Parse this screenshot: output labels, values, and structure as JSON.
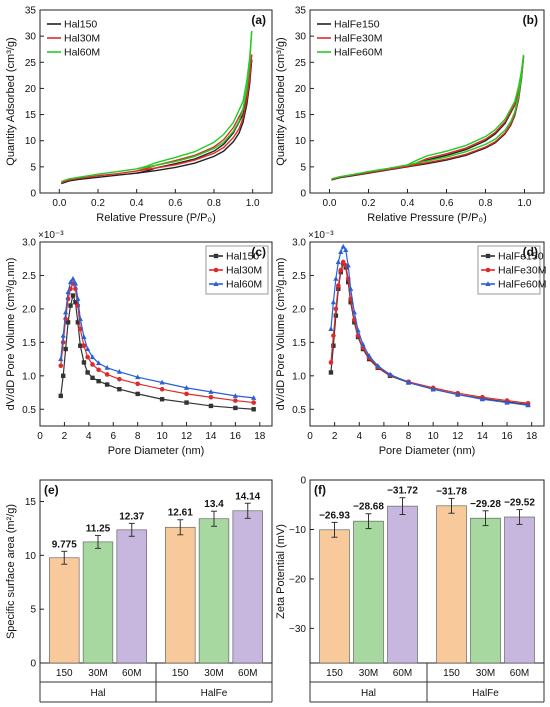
{
  "figure": {
    "background": "#ffffff"
  },
  "chart_data": [
    {
      "id": "a",
      "panel_label": "(a)",
      "type": "line",
      "xlabel": "Relative Pressure (P/P₀)",
      "ylabel": "Quantity Adsorbed (cm³/g)",
      "xlim": [
        -0.1,
        1.1
      ],
      "ylim": [
        0,
        35
      ],
      "xticks": [
        0.0,
        0.2,
        0.4,
        0.6,
        0.8,
        1.0
      ],
      "xticklabels": [
        "0.0",
        "0.2",
        "0.4",
        "0.6",
        "0.8",
        "1.0"
      ],
      "yticks": [
        0,
        5,
        10,
        15,
        20,
        25,
        30,
        35
      ],
      "yticklabels": [
        "0",
        "5",
        "10",
        "15",
        "20",
        "25",
        "30",
        "35"
      ],
      "legend_position": "top-left",
      "grid": false,
      "series": [
        {
          "name": "Hal150",
          "color": "#222222",
          "adsorption": {
            "x": [
              0.01,
              0.05,
              0.1,
              0.2,
              0.3,
              0.4,
              0.5,
              0.6,
              0.7,
              0.8,
              0.85,
              0.9,
              0.93,
              0.95,
              0.97,
              0.985,
              0.995
            ],
            "y": [
              1.8,
              2.3,
              2.6,
              3.0,
              3.4,
              3.8,
              4.3,
              4.9,
              5.7,
              7.0,
              8.0,
              9.8,
              11.5,
              13.5,
              17.0,
              21.0,
              25.5
            ]
          },
          "desorption": {
            "x": [
              0.995,
              0.985,
              0.97,
              0.95,
              0.9,
              0.85,
              0.8,
              0.7,
              0.6,
              0.5,
              0.45,
              0.4
            ],
            "y": [
              25.5,
              22.0,
              18.5,
              15.0,
              11.5,
              9.3,
              8.0,
              6.5,
              5.6,
              4.8,
              4.2,
              3.8
            ]
          }
        },
        {
          "name": "Hal30M",
          "color": "#e02a2a",
          "adsorption": {
            "x": [
              0.01,
              0.05,
              0.1,
              0.2,
              0.3,
              0.4,
              0.5,
              0.6,
              0.7,
              0.8,
              0.85,
              0.9,
              0.93,
              0.95,
              0.97,
              0.985,
              0.995
            ],
            "y": [
              2.0,
              2.5,
              2.8,
              3.3,
              3.7,
              4.2,
              4.8,
              5.4,
              6.3,
              7.6,
              8.7,
              10.6,
              12.3,
              14.3,
              18.0,
              22.0,
              26.5
            ]
          },
          "desorption": {
            "x": [
              0.995,
              0.985,
              0.97,
              0.95,
              0.9,
              0.85,
              0.8,
              0.7,
              0.6,
              0.5,
              0.45,
              0.4
            ],
            "y": [
              26.5,
              23.0,
              19.5,
              16.0,
              12.5,
              10.2,
              8.8,
              7.2,
              6.2,
              5.3,
              4.7,
              4.2
            ]
          }
        },
        {
          "name": "Hal60M",
          "color": "#22cc22",
          "adsorption": {
            "x": [
              0.01,
              0.05,
              0.1,
              0.2,
              0.3,
              0.4,
              0.5,
              0.6,
              0.7,
              0.8,
              0.85,
              0.9,
              0.93,
              0.95,
              0.97,
              0.985,
              0.995
            ],
            "y": [
              2.2,
              2.7,
              3.0,
              3.6,
              4.1,
              4.6,
              5.3,
              6.0,
              7.0,
              8.5,
              9.7,
              11.8,
              13.8,
              16.0,
              20.0,
              25.0,
              31.0
            ]
          },
          "desorption": {
            "x": [
              0.995,
              0.985,
              0.97,
              0.95,
              0.9,
              0.85,
              0.8,
              0.7,
              0.6,
              0.5,
              0.45,
              0.4
            ],
            "y": [
              31.0,
              26.0,
              21.5,
              17.5,
              13.5,
              11.2,
              9.7,
              7.9,
              6.8,
              5.8,
              5.1,
              4.6
            ]
          }
        }
      ]
    },
    {
      "id": "b",
      "panel_label": "(b)",
      "type": "line",
      "xlabel": "Relative Pressure (P/P₀)",
      "ylabel": "Quantity Adsorbed (cm³/g)",
      "xlim": [
        -0.1,
        1.1
      ],
      "ylim": [
        0,
        35
      ],
      "xticks": [
        0.0,
        0.2,
        0.4,
        0.6,
        0.8,
        1.0
      ],
      "xticklabels": [
        "0.0",
        "0.2",
        "0.4",
        "0.6",
        "0.8",
        "1.0"
      ],
      "yticks": [
        0,
        5,
        10,
        15,
        20,
        25,
        30,
        35
      ],
      "yticklabels": [
        "0",
        "5",
        "10",
        "15",
        "20",
        "25",
        "30",
        "35"
      ],
      "legend_position": "top-left",
      "grid": false,
      "series": [
        {
          "name": "HalFe150",
          "color": "#222222",
          "adsorption": {
            "x": [
              0.01,
              0.05,
              0.1,
              0.2,
              0.3,
              0.4,
              0.5,
              0.6,
              0.7,
              0.8,
              0.85,
              0.9,
              0.93,
              0.95,
              0.97,
              0.985,
              0.995
            ],
            "y": [
              2.5,
              2.9,
              3.2,
              3.8,
              4.4,
              5.0,
              5.6,
              6.3,
              7.2,
              8.6,
              9.6,
              11.3,
              13.0,
              14.8,
              18.0,
              22.0,
              26.0
            ]
          },
          "desorption": {
            "x": [
              0.995,
              0.985,
              0.97,
              0.95,
              0.9,
              0.85,
              0.8,
              0.7,
              0.6,
              0.5,
              0.45,
              0.4
            ],
            "y": [
              26.0,
              23.0,
              19.8,
              16.8,
              13.3,
              11.3,
              10.0,
              8.3,
              7.2,
              6.3,
              5.6,
              5.0
            ]
          }
        },
        {
          "name": "HalFe30M",
          "color": "#e02a2a",
          "adsorption": {
            "x": [
              0.01,
              0.05,
              0.1,
              0.2,
              0.3,
              0.4,
              0.5,
              0.6,
              0.7,
              0.8,
              0.85,
              0.9,
              0.93,
              0.95,
              0.97,
              0.985,
              0.995
            ],
            "y": [
              2.6,
              3.0,
              3.3,
              3.9,
              4.5,
              5.1,
              5.8,
              6.5,
              7.4,
              8.8,
              9.8,
              11.5,
              13.2,
              15.0,
              18.3,
              22.3,
              26.2
            ]
          },
          "desorption": {
            "x": [
              0.995,
              0.985,
              0.97,
              0.95,
              0.9,
              0.85,
              0.8,
              0.7,
              0.6,
              0.5,
              0.45,
              0.4
            ],
            "y": [
              26.2,
              23.2,
              20.0,
              17.0,
              13.6,
              11.6,
              10.3,
              8.6,
              7.5,
              6.6,
              5.8,
              5.1
            ]
          }
        },
        {
          "name": "HalFe60M",
          "color": "#22cc22",
          "adsorption": {
            "x": [
              0.01,
              0.05,
              0.1,
              0.2,
              0.3,
              0.4,
              0.5,
              0.6,
              0.7,
              0.8,
              0.85,
              0.9,
              0.93,
              0.95,
              0.97,
              0.985,
              0.995
            ],
            "y": [
              2.7,
              3.1,
              3.4,
              4.1,
              4.7,
              5.4,
              6.1,
              6.9,
              7.9,
              9.3,
              10.3,
              12.0,
              13.7,
              15.5,
              18.7,
              22.6,
              26.4
            ]
          },
          "desorption": {
            "x": [
              0.995,
              0.985,
              0.97,
              0.95,
              0.9,
              0.85,
              0.8,
              0.7,
              0.6,
              0.5,
              0.45,
              0.4
            ],
            "y": [
              26.4,
              23.5,
              20.4,
              17.5,
              14.1,
              12.1,
              10.8,
              9.1,
              8.0,
              7.1,
              6.3,
              5.4
            ]
          }
        }
      ]
    },
    {
      "id": "c",
      "panel_label": "(c)",
      "type": "line",
      "xlabel": "Pore Diameter (nm)",
      "ylabel": "dV/dD Pore Volume (cm³/g.nm)",
      "y_multiplier_label": "×10⁻³",
      "xlim": [
        0,
        19
      ],
      "ylim": [
        0.25,
        3.0
      ],
      "xticks": [
        0,
        2,
        4,
        6,
        8,
        10,
        12,
        14,
        16,
        18
      ],
      "xticklabels": [
        "0",
        "2",
        "4",
        "6",
        "8",
        "10",
        "12",
        "14",
        "16",
        "18"
      ],
      "yticks": [
        0.5,
        1.0,
        1.5,
        2.0,
        2.5,
        3.0
      ],
      "yticklabels": [
        "0.5",
        "1.0",
        "1.5",
        "2.0",
        "2.5",
        "3.0"
      ],
      "legend_position": "top-right",
      "grid": false,
      "series": [
        {
          "name": "Hal150",
          "color": "#333333",
          "marker": "square",
          "x": [
            1.7,
            1.9,
            2.1,
            2.3,
            2.5,
            2.7,
            2.9,
            3.1,
            3.3,
            3.6,
            3.9,
            4.3,
            4.8,
            5.5,
            6.5,
            8.0,
            10.0,
            12.0,
            14.0,
            16.0,
            17.5
          ],
          "y": [
            0.7,
            1.0,
            1.4,
            1.8,
            2.05,
            2.2,
            2.1,
            1.8,
            1.45,
            1.2,
            1.05,
            0.97,
            0.92,
            0.87,
            0.8,
            0.73,
            0.65,
            0.6,
            0.55,
            0.52,
            0.5
          ]
        },
        {
          "name": "Hal30M",
          "color": "#e02a2a",
          "marker": "circle",
          "x": [
            1.7,
            1.9,
            2.1,
            2.3,
            2.5,
            2.7,
            2.9,
            3.1,
            3.3,
            3.6,
            3.9,
            4.3,
            4.8,
            5.5,
            6.5,
            8.0,
            10.0,
            12.0,
            14.0,
            16.0,
            17.5
          ],
          "y": [
            1.15,
            1.5,
            1.85,
            2.15,
            2.3,
            2.38,
            2.3,
            2.05,
            1.7,
            1.45,
            1.28,
            1.17,
            1.09,
            1.02,
            0.95,
            0.88,
            0.8,
            0.73,
            0.68,
            0.63,
            0.6
          ]
        },
        {
          "name": "Hal60M",
          "color": "#2a5fd8",
          "marker": "triangle",
          "x": [
            1.7,
            1.9,
            2.1,
            2.3,
            2.5,
            2.7,
            2.9,
            3.1,
            3.3,
            3.6,
            3.9,
            4.3,
            4.8,
            5.5,
            6.5,
            8.0,
            10.0,
            12.0,
            14.0,
            16.0,
            17.5
          ],
          "y": [
            1.25,
            1.6,
            1.95,
            2.25,
            2.4,
            2.45,
            2.38,
            2.15,
            1.85,
            1.58,
            1.4,
            1.28,
            1.19,
            1.12,
            1.06,
            0.98,
            0.9,
            0.82,
            0.76,
            0.7,
            0.67
          ]
        }
      ]
    },
    {
      "id": "d",
      "panel_label": "(d)",
      "type": "line",
      "xlabel": "Pore Diameter (nm)",
      "ylabel": "dV/dD Pore Volume (cm³/g.nm)",
      "y_multiplier_label": "×10⁻³",
      "xlim": [
        0,
        19
      ],
      "ylim": [
        0.25,
        3.0
      ],
      "xticks": [
        0,
        2,
        4,
        6,
        8,
        10,
        12,
        14,
        16,
        18
      ],
      "xticklabels": [
        "0",
        "2",
        "4",
        "6",
        "8",
        "10",
        "12",
        "14",
        "16",
        "18"
      ],
      "yticks": [
        0.5,
        1.0,
        1.5,
        2.0,
        2.5,
        3.0
      ],
      "yticklabels": [
        "0.5",
        "1.0",
        "1.5",
        "2.0",
        "2.5",
        "3.0"
      ],
      "legend_position": "top-right",
      "grid": false,
      "series": [
        {
          "name": "HalFe150",
          "color": "#333333",
          "marker": "square",
          "x": [
            1.7,
            1.9,
            2.1,
            2.3,
            2.5,
            2.7,
            2.9,
            3.1,
            3.3,
            3.6,
            3.9,
            4.3,
            4.8,
            5.5,
            6.5,
            8.0,
            10.0,
            12.0,
            14.0,
            16.0,
            17.7
          ],
          "y": [
            1.05,
            1.45,
            1.9,
            2.3,
            2.55,
            2.68,
            2.62,
            2.4,
            2.1,
            1.8,
            1.58,
            1.4,
            1.25,
            1.12,
            1.0,
            0.9,
            0.8,
            0.72,
            0.66,
            0.61,
            0.57
          ]
        },
        {
          "name": "HalFe30M",
          "color": "#e02a2a",
          "marker": "circle",
          "x": [
            1.7,
            1.9,
            2.1,
            2.3,
            2.5,
            2.7,
            2.9,
            3.1,
            3.3,
            3.6,
            3.9,
            4.3,
            4.8,
            5.5,
            6.5,
            8.0,
            10.0,
            12.0,
            14.0,
            16.0,
            17.7
          ],
          "y": [
            1.2,
            1.6,
            2.0,
            2.35,
            2.58,
            2.7,
            2.65,
            2.45,
            2.15,
            1.84,
            1.6,
            1.42,
            1.27,
            1.13,
            1.01,
            0.91,
            0.82,
            0.74,
            0.68,
            0.63,
            0.59
          ]
        },
        {
          "name": "HalFe60M",
          "color": "#2a5fd8",
          "marker": "triangle",
          "x": [
            1.7,
            1.9,
            2.1,
            2.3,
            2.5,
            2.7,
            2.9,
            3.1,
            3.3,
            3.6,
            3.9,
            4.3,
            4.8,
            5.5,
            6.5,
            8.0,
            10.0,
            12.0,
            14.0,
            16.0,
            17.7
          ],
          "y": [
            1.7,
            2.1,
            2.45,
            2.7,
            2.85,
            2.93,
            2.88,
            2.65,
            2.3,
            1.95,
            1.68,
            1.47,
            1.3,
            1.15,
            1.02,
            0.9,
            0.8,
            0.72,
            0.65,
            0.6,
            0.56
          ]
        }
      ]
    },
    {
      "id": "e",
      "panel_label": "(e)",
      "type": "bar",
      "ylabel": "Specific surface area (m²/g)",
      "ylim": [
        0,
        17
      ],
      "yticks": [
        0,
        5,
        10,
        15
      ],
      "yticklabels": [
        "0",
        "5",
        "10",
        "15"
      ],
      "grid": false,
      "groups": [
        "Hal",
        "HalFe"
      ],
      "categories": [
        "150",
        "30M",
        "60M"
      ],
      "category_colors": [
        "#f8c99a",
        "#a6d8a0",
        "#c7b6dd"
      ],
      "series": [
        {
          "name": "Hal",
          "values": [
            9.775,
            11.25,
            12.37
          ],
          "labels": [
            "9.775",
            "11.25",
            "12.37"
          ],
          "errors": [
            0.6,
            0.6,
            0.6
          ]
        },
        {
          "name": "HalFe",
          "values": [
            12.61,
            13.4,
            14.14
          ],
          "labels": [
            "12.61",
            "13.4",
            "14.14"
          ],
          "errors": [
            0.7,
            0.7,
            0.7
          ]
        }
      ]
    },
    {
      "id": "f",
      "panel_label": "(f)",
      "type": "bar",
      "ylabel": "Zeta Potential (mV)",
      "ylim": [
        -37,
        0
      ],
      "yticks": [
        0,
        -10,
        -20,
        -30
      ],
      "yticklabels": [
        "0",
        "−10",
        "−20",
        "−30"
      ],
      "grid": false,
      "groups": [
        "Hal",
        "HalFe"
      ],
      "categories": [
        "150",
        "30M",
        "60M"
      ],
      "category_colors": [
        "#f8c99a",
        "#a6d8a0",
        "#c7b6dd"
      ],
      "series": [
        {
          "name": "Hal",
          "values": [
            -26.93,
            -28.68,
            -31.72
          ],
          "labels": [
            "−26.93",
            "−28.68",
            "−31.72"
          ],
          "errors": [
            1.5,
            1.5,
            1.7
          ]
        },
        {
          "name": "HalFe",
          "values": [
            -31.78,
            -29.28,
            -29.52
          ],
          "labels": [
            "−31.78",
            "−29.28",
            "−29.52"
          ],
          "errors": [
            1.5,
            1.5,
            1.5
          ]
        }
      ]
    }
  ]
}
